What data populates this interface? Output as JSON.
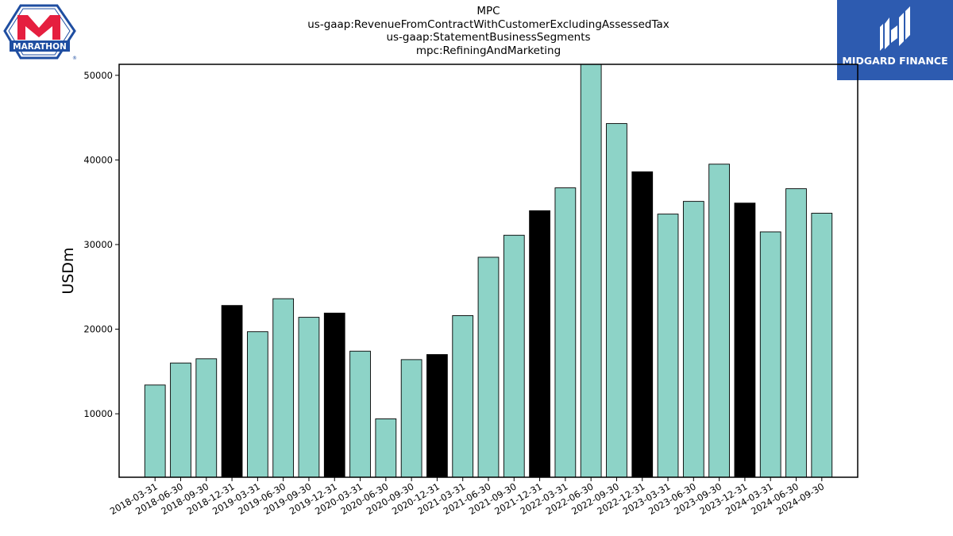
{
  "titles": [
    "MPC",
    "us-gaap:RevenueFromContractWithCustomerExcludingAssessedTax",
    "us-gaap:StatementBusinessSegments",
    "mpc:RefiningAndMarketing"
  ],
  "logos": {
    "left": {
      "icon": "marathon-logo",
      "text": "MARATHON",
      "color": "#e51f3f",
      "border": "#1f4ea1"
    },
    "right": {
      "icon": "midgard-finance-logo",
      "text": "MIDGARD FINANCE",
      "background": "#2d5bb0"
    }
  },
  "colors": {
    "quarter": "#8dd3c7",
    "year_end": "#000000",
    "edge": "#000000"
  },
  "chart_data": {
    "type": "bar",
    "title": "MPC",
    "xlabel": "",
    "ylabel": "USDm",
    "ylim": [
      2500,
      51300
    ],
    "yticks": [
      10000,
      20000,
      30000,
      40000,
      50000
    ],
    "grid": false,
    "categories": [
      "2018-03-31",
      "2018-06-30",
      "2018-09-30",
      "2018-12-31",
      "2019-03-31",
      "2019-06-30",
      "2019-09-30",
      "2019-12-31",
      "2020-03-31",
      "2020-06-30",
      "2020-09-30",
      "2020-12-31",
      "2021-03-31",
      "2021-06-30",
      "2021-09-30",
      "2021-12-31",
      "2022-03-31",
      "2022-06-30",
      "2022-09-30",
      "2022-12-31",
      "2023-03-31",
      "2023-06-30",
      "2023-09-30",
      "2023-12-31",
      "2024-03-31",
      "2024-06-30",
      "2024-09-30"
    ],
    "values": [
      13400,
      16000,
      16500,
      22800,
      19700,
      23600,
      21400,
      21900,
      17400,
      9400,
      16400,
      17000,
      21600,
      28500,
      31100,
      34000,
      36700,
      51600,
      44300,
      38600,
      33600,
      35100,
      39500,
      34900,
      31500,
      36600,
      33700
    ],
    "year_end": [
      false,
      false,
      false,
      true,
      false,
      false,
      false,
      true,
      false,
      false,
      false,
      true,
      false,
      false,
      false,
      true,
      false,
      false,
      false,
      true,
      false,
      false,
      false,
      true,
      false,
      false,
      false
    ]
  }
}
